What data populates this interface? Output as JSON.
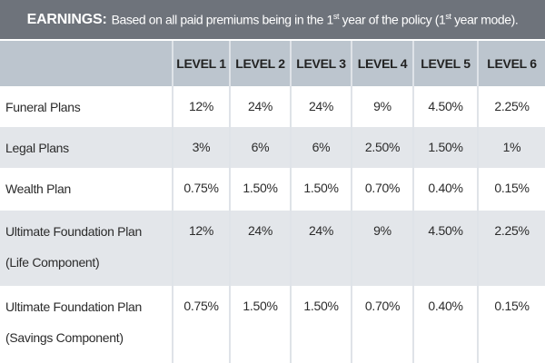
{
  "header": {
    "label": "EARNINGS:",
    "text": [
      "Based on all paid premiums being in the 1",
      "st",
      " year of the policy (1",
      "st",
      " year mode)."
    ]
  },
  "table": {
    "columns": [
      "LEVEL 1",
      "LEVEL 2",
      "LEVEL 3",
      "LEVEL 4",
      "LEVEL 5",
      "LEVEL 6"
    ],
    "rows": [
      {
        "label": [
          "Funeral Plans"
        ],
        "values": [
          "12%",
          "24%",
          "24%",
          "9%",
          "4.50%",
          "2.25%"
        ]
      },
      {
        "label": [
          "Legal Plans"
        ],
        "values": [
          "3%",
          "6%",
          "6%",
          "2.50%",
          "1.50%",
          "1%"
        ]
      },
      {
        "label": [
          "Wealth Plan"
        ],
        "values": [
          "0.75%",
          "1.50%",
          "1.50%",
          "0.70%",
          "0.40%",
          "0.15%"
        ]
      },
      {
        "label": [
          "Ultimate Foundation Plan",
          "(Life Component)"
        ],
        "values": [
          "12%",
          "24%",
          "24%",
          "9%",
          "4.50%",
          "2.25%"
        ]
      },
      {
        "label": [
          "Ultimate Foundation Plan",
          "(Savings Component)"
        ],
        "values": [
          "0.75%",
          "1.50%",
          "1.50%",
          "0.70%",
          "0.40%",
          "0.15%"
        ]
      }
    ]
  }
}
